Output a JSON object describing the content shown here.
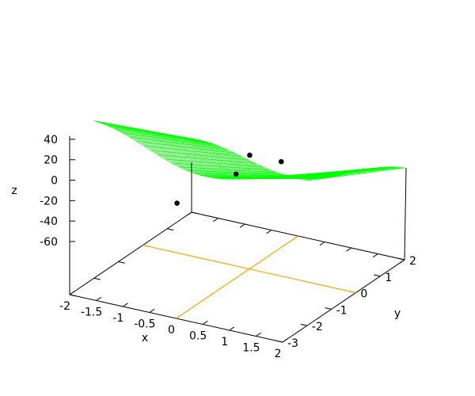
{
  "chart_data": {
    "type": "surface3d",
    "title": "",
    "xlabel": "x",
    "ylabel": "y",
    "zlabel": "z",
    "x_ticks": [
      "-2",
      "-1.5",
      "-1",
      "-0.5",
      "0",
      "0.5",
      "1",
      "1.5",
      "2"
    ],
    "y_ticks": [
      "-3",
      "-2",
      "-1",
      "0",
      "1",
      "2"
    ],
    "z_ticks": [
      "40",
      "20",
      "0",
      "-20",
      "-40",
      "-60"
    ],
    "xlim": [
      -2,
      2
    ],
    "ylim": [
      -3,
      2
    ],
    "z_tick_range": [
      -60,
      40
    ],
    "zero_axes": {
      "x": 0,
      "y": 0,
      "color": "#ffa500"
    },
    "surface": {
      "x_range": [
        -2,
        2
      ],
      "y_range": [
        -2,
        2
      ],
      "grid": [
        30,
        30
      ],
      "style": "mesh",
      "color": "#00ff00"
    },
    "points": [
      {
        "x": -0.9,
        "y": -1,
        "z": -42
      },
      {
        "x": -0.25,
        "y": 0,
        "z": -22
      },
      {
        "x": -0.45,
        "y": 1,
        "z": -22
      },
      {
        "x": 0.6,
        "y": 0,
        "z": 0
      }
    ],
    "point_color": "#000000",
    "grid": false,
    "legend": "none"
  }
}
